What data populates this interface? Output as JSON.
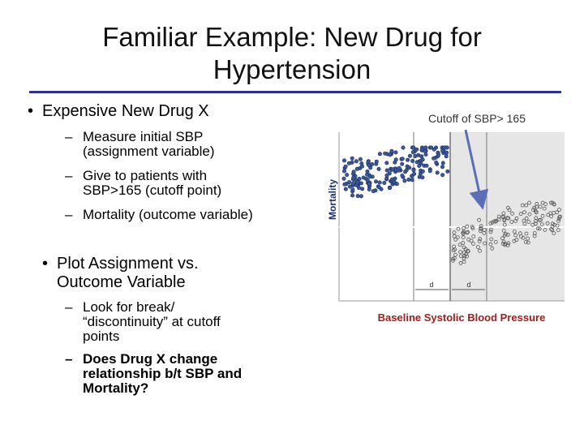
{
  "slide": {
    "title_line1": "Familiar Example: New Drug for",
    "title_line2": "Hypertension",
    "bullet1": "Expensive New Drug X",
    "bullet1_subs": [
      [
        "Measure initial SBP",
        "(assignment variable)"
      ],
      [
        "Give to patients with",
        "SBP>165 (cutoff point)"
      ],
      [
        "Mortality (outcome variable)"
      ]
    ],
    "bullet2": [
      "Plot Assignment vs.",
      "Outcome Variable"
    ],
    "bullet2_subs": [
      [
        "Look for break/",
        "“discontinuity” at cutoff",
        "points"
      ],
      [
        "Does Drug X change",
        "relationship b/t SBP and",
        "Mortality?"
      ]
    ],
    "bullet_glyph": "•",
    "dash_glyph": "–"
  },
  "figure": {
    "cutoff_label": "Cutoff of SBP> 165",
    "ylabel": "Mortality",
    "xlabel": "Baseline Systolic Blood Pressure",
    "d_left": "d",
    "d_right": "d",
    "colors": {
      "treated_fill": "#3b5998",
      "control_stroke": "#555555",
      "arrow": "#5b6fb8",
      "xlabel": "#a01c1c"
    }
  }
}
